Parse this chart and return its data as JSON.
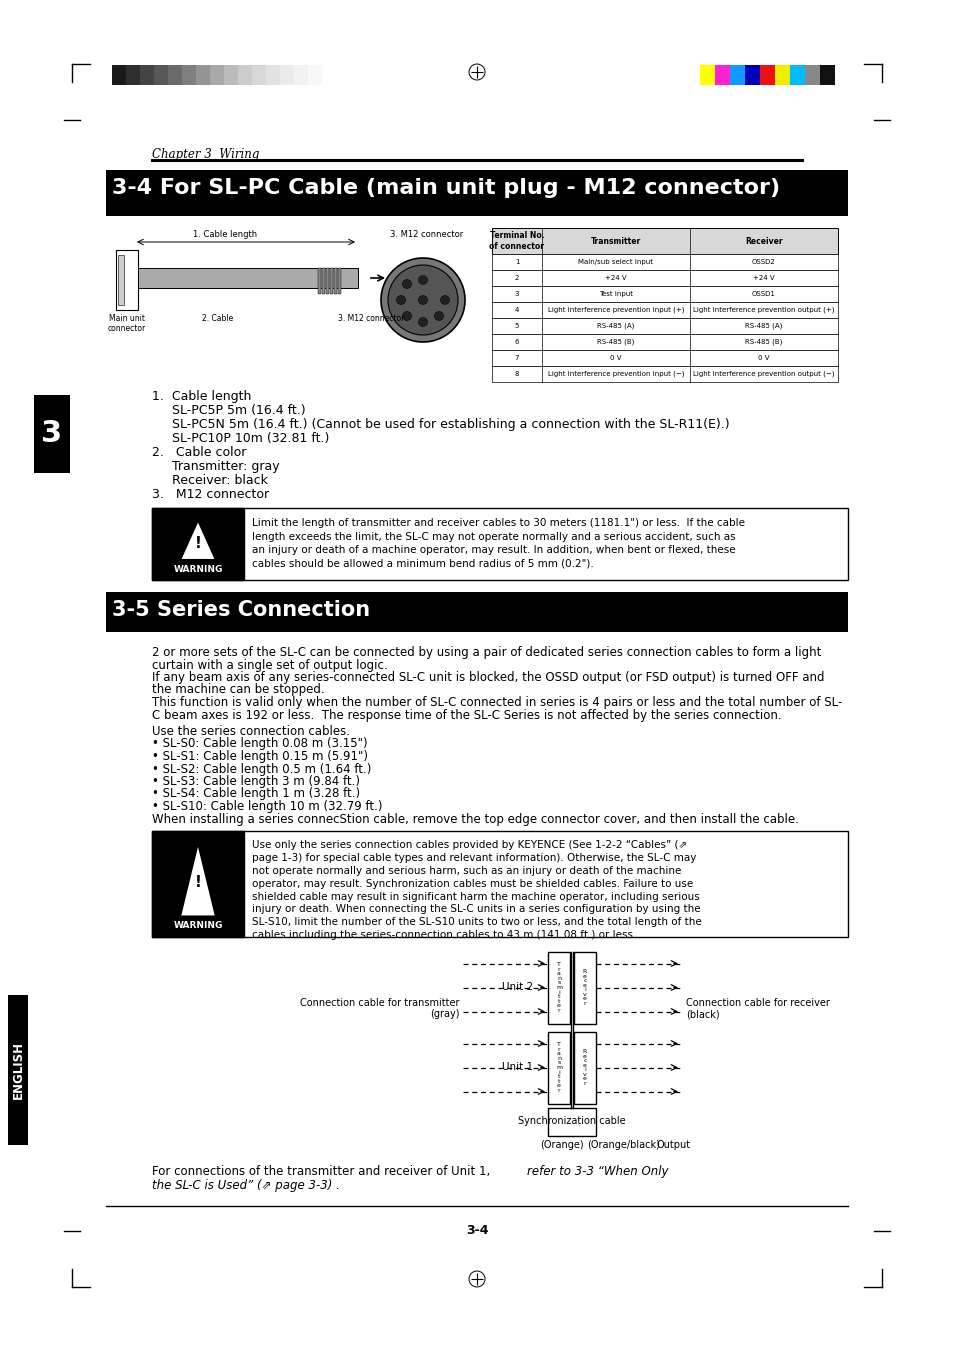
{
  "page_bg": "#ffffff",
  "chapter_text": "Chapter 3  Wiring",
  "section1_title": "3-4 For SL-PC Cable (main unit plug - M12 connector)",
  "section2_title": "3-5 Series Connection",
  "table_headers": [
    "Terminal No.\nof connector",
    "Transmitter",
    "Receiver"
  ],
  "table_rows": [
    [
      "1",
      "Main/sub select input",
      "OSSD2"
    ],
    [
      "2",
      "+24 V",
      "+24 V"
    ],
    [
      "3",
      "Test input",
      "OSSD1"
    ],
    [
      "4",
      "Light interference prevention input (+)",
      "Light interference prevention output (+)"
    ],
    [
      "5",
      "RS-485 (A)",
      "RS-485 (A)"
    ],
    [
      "6",
      "RS-485 (B)",
      "RS-485 (B)"
    ],
    [
      "7",
      "0 V",
      "0 V"
    ],
    [
      "8",
      "Light interference prevention input (−)",
      "Light interference prevention output (−)"
    ]
  ],
  "warn1_lines": [
    "Limit the length of transmitter and receiver cables to 30 meters (1181.1\") or less.  If the cable",
    "length exceeds the limit, the SL-C may not operate normally and a serious accident, such as",
    "an injury or death of a machine operator, may result. In addition, when bent or flexed, these",
    "cables should be allowed a minimum bend radius of 5 mm (0.2\")."
  ],
  "series_paras": [
    "2 or more sets of the SL-C can be connected by using a pair of dedicated series connection cables to form a light",
    "curtain with a single set of output logic.",
    "If any beam axis of any series-connected SL-C unit is blocked, the OSSD output (or FSD output) is turned OFF and",
    "the machine can be stopped.",
    "This function is valid only when the number of SL-C connected in series is 4 pairs or less and the total number of SL-",
    "C beam axes is 192 or less.  The response time of the SL-C Series is not affected by the series connection."
  ],
  "series_cables_intro": "Use the series connection cables.",
  "series_cables": [
    "• SL-S0: Cable length 0.08 m (3.15\")",
    "• SL-S1: Cable length 0.15 m (5.91\")",
    "• SL-S2: Cable length 0.5 m (1.64 ft.)",
    "• SL-S3: Cable length 3 m (9.84 ft.)",
    "• SL-S4: Cable length 1 m (3.28 ft.)",
    "• SL-S10: Cable length 10 m (32.79 ft.)"
  ],
  "series_install_note": "When installing a series connecStion cable, remove the top edge connector cover, and then install the cable.",
  "warn2_lines": [
    "Use only the series connection cables provided by KEYENCE (See 1-2-2 “Cables” (⇗",
    "page 1-3) for special cable types and relevant information). Otherwise, the SL-C may",
    "not operate normally and serious harm, such as an injury or death of the machine",
    "operator, may result. Synchronization cables must be shielded cables. Failure to use",
    "shielded cable may result in significant harm the machine operator, including serious",
    "injury or death. When connecting the SL-C units in a series configuration by using the",
    "SL-S10, limit the number of the SL-S10 units to two or less, and the total length of the",
    "cables including the series-connection cables to 43 m (141.08 ft.) or less."
  ],
  "footer_note_normal": "For connections of the transmitter and receiver of Unit 1, ",
  "footer_note_italic": "refer to 3-3 “When Only\nthe SL-C is Used” (⇗ page 3-3) .",
  "page_number": "3-4",
  "section_tab": "3",
  "english_tab": "ENGLISH",
  "title_bg": "#000000",
  "title_text_color": "#ffffff"
}
